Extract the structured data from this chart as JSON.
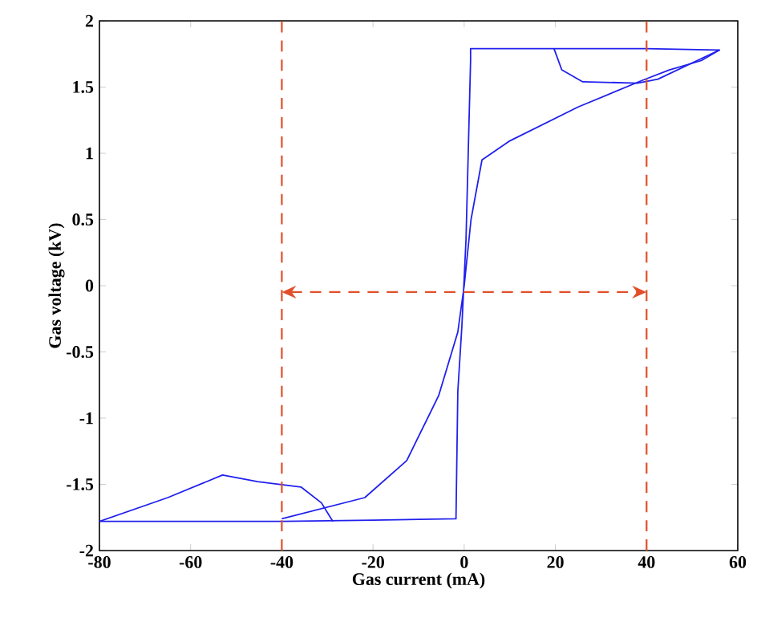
{
  "chart_data": {
    "type": "line",
    "xlabel": "Gas current (mA)",
    "ylabel": "Gas voltage (kV)",
    "xlim": [
      -80,
      60
    ],
    "xticks": [
      -80,
      -60,
      -40,
      -20,
      0,
      20,
      40,
      60
    ],
    "ylim": [
      -2,
      2
    ],
    "yticks": [
      -2,
      -1.5,
      -1,
      -0.5,
      0,
      0.5,
      1,
      1.5,
      2
    ],
    "grid": false,
    "marker": "none",
    "line_style": "solid",
    "series": [
      {
        "color": "#2020ee",
        "x": [
          -80,
          -40,
          -20,
          -1.8,
          -1.4,
          -0.5,
          0.4,
          1.4,
          1.4,
          20,
          40,
          56,
          52,
          45,
          39,
          25,
          9.8,
          3.9,
          1.5,
          0,
          -1.4,
          -5.6,
          -12.6,
          -21.8,
          -40
        ],
        "values": [
          -1.78,
          -1.78,
          -1.77,
          -1.76,
          -0.8,
          -0.3,
          0.35,
          1.7,
          1.79,
          1.79,
          1.79,
          1.78,
          1.7,
          1.63,
          1.55,
          1.35,
          1.09,
          0.95,
          0.5,
          0,
          -0.35,
          -0.83,
          -1.32,
          -1.6,
          -1.76
        ]
      },
      {
        "color": "#2020ee",
        "x": [
          -80,
          -65,
          -53,
          -45.3,
          -35.8,
          -31.3,
          -28.8
        ],
        "values": [
          -1.78,
          -1.6,
          -1.43,
          -1.48,
          -1.52,
          -1.64,
          -1.78
        ]
      },
      {
        "color": "#2020ee",
        "x": [
          19.7,
          21.4,
          26,
          38,
          42.5,
          56
        ],
        "values": [
          1.79,
          1.63,
          1.54,
          1.53,
          1.56,
          1.78
        ]
      }
    ],
    "ref_lines": [
      {
        "axis": "x",
        "value": -40,
        "color": "#e0502a",
        "line_style": "dashed"
      },
      {
        "axis": "x",
        "value": 40,
        "color": "#e0502a",
        "line_style": "dashed"
      }
    ]
  }
}
